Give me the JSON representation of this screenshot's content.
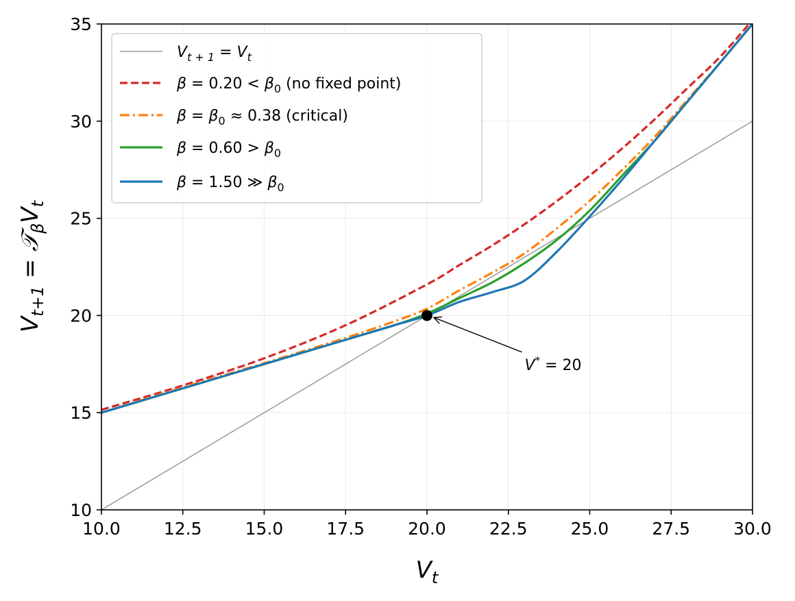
{
  "chart_data": {
    "type": "line",
    "title": "",
    "xlabel": "V_t",
    "ylabel": "V_{t+1} = T_β V_t",
    "xlim": [
      10,
      30
    ],
    "ylim": [
      10,
      35
    ],
    "grid": true,
    "legend_position": "top-left",
    "x_ticks": [
      "10.0",
      "12.5",
      "15.0",
      "17.5",
      "20.0",
      "22.5",
      "25.0",
      "27.5",
      "30.0"
    ],
    "y_ticks": [
      "10",
      "15",
      "20",
      "25",
      "30",
      "35"
    ],
    "series": [
      {
        "name": "V_{t+1} = V_t",
        "color": "#999999",
        "dash": "solid",
        "x": [
          10,
          30
        ],
        "y": [
          10,
          30
        ]
      },
      {
        "name": "β = 0.20 < β₀ (no fixed point)",
        "color": "#d62728",
        "dash": "dashed",
        "x": [
          10,
          12.5,
          15,
          17.5,
          20,
          21,
          22,
          23,
          24,
          25,
          26,
          27,
          28,
          29,
          30
        ],
        "y": [
          15.15,
          16.4,
          17.8,
          19.5,
          21.6,
          22.6,
          23.6,
          24.7,
          25.9,
          27.2,
          28.6,
          30.1,
          31.7,
          33.3,
          35.2
        ]
      },
      {
        "name": "β = β₀ ≈ 0.38 (critical)",
        "color": "#ff7f0e",
        "dash": "dashdot",
        "x": [
          10,
          12.5,
          15,
          17.5,
          19,
          20,
          21,
          22,
          23,
          24,
          25,
          26,
          27,
          28,
          29,
          30
        ],
        "y": [
          15.0,
          16.3,
          17.55,
          18.85,
          19.7,
          20.35,
          21.3,
          22.2,
          23.2,
          24.5,
          25.9,
          27.5,
          29.2,
          31.1,
          33.0,
          35.0
        ]
      },
      {
        "name": "β = 0.60 > β₀",
        "color": "#2ca02c",
        "dash": "solid",
        "x": [
          10,
          12.5,
          15,
          17.5,
          19,
          20,
          21,
          22,
          23,
          24,
          25,
          26,
          27,
          28,
          29,
          30
        ],
        "y": [
          15.0,
          16.25,
          17.5,
          18.75,
          19.5,
          20.1,
          20.9,
          21.7,
          22.7,
          23.9,
          25.4,
          27.2,
          29.0,
          31.0,
          33.0,
          35.0
        ]
      },
      {
        "name": "β = 1.50 ≫ β₀",
        "color": "#1f77b4",
        "dash": "solid",
        "x": [
          10,
          12.5,
          15,
          17.5,
          19,
          20,
          21,
          22,
          23,
          24,
          25,
          26,
          27,
          28,
          29,
          30
        ],
        "y": [
          15.0,
          16.25,
          17.5,
          18.75,
          19.5,
          20.0,
          20.7,
          21.2,
          21.8,
          23.3,
          25.1,
          27.0,
          29.0,
          31.0,
          33.0,
          35.0
        ]
      }
    ],
    "fixed_point": {
      "x": 20,
      "y": 20,
      "label": "V* = 20",
      "label_at": [
        23,
        17.2
      ]
    }
  }
}
